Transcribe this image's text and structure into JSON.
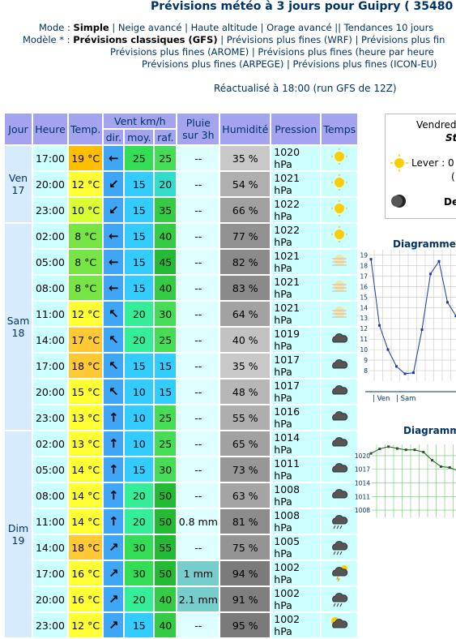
{
  "header": {
    "title": "Prévisions météo à 3 jours pour Guipry ( 35480",
    "mode_line": [
      "Mode :",
      "Simple",
      "|",
      "Neige avancé",
      "|",
      "Haute altitude",
      "|",
      "Orage avancé",
      "||",
      "Tendances 10 jours"
    ],
    "model_lines": [
      [
        "Modèle * :",
        "Prévisions classiques (GFS)",
        "|",
        "Prévisions plus fines (WRF)",
        "|",
        "Prévisions plus fin"
      ],
      [
        "Prévisions plus fines (AROME)",
        "|",
        "Prévisions plus fines (heure par heure"
      ],
      [
        "Prévisions plus fines (ARPEGE)",
        "|",
        "Prévisions plus fines (ICON-EU)"
      ]
    ],
    "updated": "Réactualisé à 18:00 (run GFS de 12Z)"
  },
  "table": {
    "headers": {
      "day": "Jour",
      "hour": "Heure",
      "temp": "Temp.",
      "wind": "Vent km/h",
      "dir": "dir.",
      "avg": "moy.",
      "gust": "raf.",
      "rain": "Pluie sur 3h",
      "humidity": "Humidité",
      "pressure": "Pression",
      "weather": "Temps"
    },
    "days": [
      {
        "name": "Ven",
        "date": "17",
        "rows": [
          [
            "17:00",
            "19 °C",
            "←",
            "25",
            "25",
            "--",
            "35 %",
            "1020 hPa"
          ],
          [
            "20:00",
            "12 °C",
            "↙",
            "15",
            "20",
            "--",
            "54 %",
            "1021 hPa"
          ],
          [
            "23:00",
            "10 °C",
            "↙",
            "15",
            "35",
            "--",
            "66 %",
            "1022 hPa"
          ]
        ]
      },
      {
        "name": "Sam",
        "date": "18",
        "rows": [
          [
            "02:00",
            "8 °C",
            "←",
            "15",
            "40",
            "--",
            "77 %",
            "1022 hPa"
          ],
          [
            "05:00",
            "8 °C",
            "←",
            "15",
            "45",
            "--",
            "82 %",
            "1021 hPa"
          ],
          [
            "08:00",
            "8 °C",
            "←",
            "15",
            "40",
            "--",
            "83 %",
            "1021 hPa"
          ],
          [
            "11:00",
            "12 °C",
            "↖",
            "20",
            "30",
            "--",
            "64 %",
            "1021 hPa"
          ],
          [
            "14:00",
            "17 °C",
            "↖",
            "20",
            "25",
            "--",
            "40 %",
            "1019 hPa"
          ],
          [
            "17:00",
            "18 °C",
            "↖",
            "15",
            "15",
            "--",
            "35 %",
            "1017 hPa"
          ],
          [
            "20:00",
            "15 °C",
            "↖",
            "10",
            "15",
            "--",
            "48 %",
            "1017 hPa"
          ],
          [
            "23:00",
            "13 °C",
            "↑",
            "10",
            "25",
            "--",
            "55 %",
            "1016 hPa"
          ]
        ]
      },
      {
        "name": "Dim",
        "date": "19",
        "rows": [
          [
            "02:00",
            "13 °C",
            "↑",
            "10",
            "25",
            "--",
            "65 %",
            "1014 hPa"
          ],
          [
            "05:00",
            "14 °C",
            "↑",
            "15",
            "30",
            "--",
            "73 %",
            "1011 hPa"
          ],
          [
            "08:00",
            "14 °C",
            "↑",
            "20",
            "50",
            "--",
            "63 %",
            "1008 hPa"
          ],
          [
            "11:00",
            "14 °C",
            "↑",
            "20",
            "50",
            "0.8 mm",
            "81 %",
            "1008 hPa"
          ],
          [
            "14:00",
            "18 °C",
            "↗",
            "30",
            "55",
            "--",
            "75 %",
            "1005 hPa"
          ],
          [
            "17:00",
            "16 °C",
            "↗",
            "30",
            "50",
            "1 mm",
            "94 %",
            "1002 hPa"
          ],
          [
            "20:00",
            "16 °C",
            "↗",
            "20",
            "40",
            "2.1 mm",
            "91 %",
            "1002 hPa"
          ],
          [
            "23:00",
            "12 °C",
            "↗",
            "15",
            "40",
            "--",
            "95 %",
            "1002 hPa"
          ]
        ]
      }
    ]
  },
  "sidebar": {
    "day": "Vendred",
    "saint": "St",
    "sunrise": "Lever : 0",
    "paren": "(",
    "moon": "De",
    "temp_chart": {
      "type": "line",
      "title": "Diagramme",
      "x_labels": [
        "| Ven",
        "| Sam"
      ],
      "ylim": [
        7,
        19.5
      ],
      "yticks": [
        8,
        9,
        10,
        11,
        12,
        13,
        14,
        15,
        16,
        17,
        18,
        19
      ],
      "color": "#1a3aa8",
      "values": [
        18.6,
        12.3,
        10,
        8.4,
        7.7,
        7.8,
        11.9,
        17.2,
        18.4,
        14.5,
        13.2
      ]
    },
    "pressure_chart": {
      "type": "line",
      "title": "Diagramm",
      "ylim": [
        1006.4,
        1022.5
      ],
      "yticks": [
        1008,
        1011,
        1014,
        1017,
        1020
      ],
      "color": "#1d5a1d",
      "values": [
        1020.5,
        1021.5,
        1022,
        1021.6,
        1021.3,
        1021.3,
        1020.8,
        1019,
        1017.6,
        1017.4,
        1016.6
      ]
    }
  }
}
